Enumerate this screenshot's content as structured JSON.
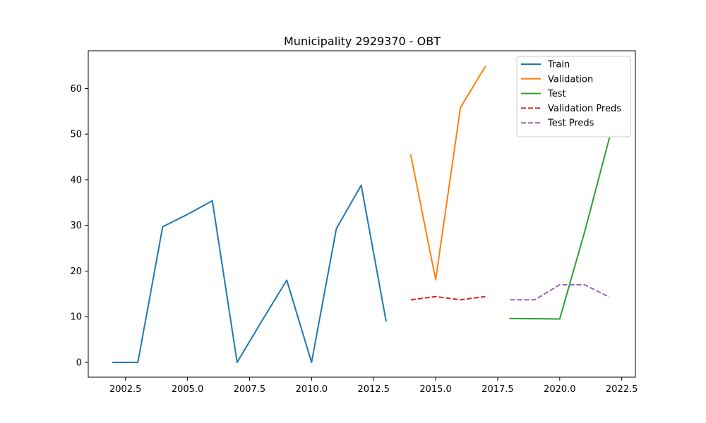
{
  "chart_data": {
    "type": "line",
    "title": "Municipality 2929370 - OBT",
    "xlabel": "",
    "ylabel": "",
    "xlim": [
      2001.0,
      2023.05
    ],
    "ylim": [
      -3.25,
      68.25
    ],
    "xticks": [
      2002.5,
      2005.0,
      2007.5,
      2010.0,
      2012.5,
      2015.0,
      2017.5,
      2020.0,
      2022.5
    ],
    "xtick_labels": [
      "2002.5",
      "2005.0",
      "2007.5",
      "2010.0",
      "2012.5",
      "2015.0",
      "2017.5",
      "2020.0",
      "2022.5"
    ],
    "yticks": [
      0,
      10,
      20,
      30,
      40,
      50,
      60
    ],
    "ytick_labels": [
      "0",
      "10",
      "20",
      "30",
      "40",
      "50",
      "60"
    ],
    "grid": false,
    "legend_position": "top-right",
    "series": [
      {
        "name": "Train",
        "color": "#1f77b4",
        "style": "solid",
        "x": [
          2002,
          2003,
          2004,
          2005,
          2006,
          2007,
          2008,
          2009,
          2010,
          2011,
          2012,
          2013
        ],
        "y": [
          0,
          0,
          29.7,
          32.4,
          35.4,
          0,
          9.1,
          18.0,
          0,
          29.3,
          38.8,
          9.1
        ]
      },
      {
        "name": "Validation",
        "color": "#ff7f0e",
        "style": "solid",
        "x": [
          2014,
          2015,
          2016,
          2017
        ],
        "y": [
          45.4,
          18.1,
          55.8,
          64.8
        ]
      },
      {
        "name": "Test",
        "color": "#2ca02c",
        "style": "solid",
        "x": [
          2018,
          2019,
          2020,
          2021,
          2022
        ],
        "y": [
          9.6,
          9.55,
          9.5,
          28.5,
          49.1
        ]
      },
      {
        "name": "Validation Preds",
        "color": "#d62728",
        "style": "dashed",
        "x": [
          2014,
          2015,
          2016,
          2017
        ],
        "y": [
          13.7,
          14.4,
          13.7,
          14.4
        ]
      },
      {
        "name": "Test Preds",
        "color": "#9467bd",
        "style": "dashed",
        "x": [
          2018,
          2019,
          2020,
          2021,
          2022
        ],
        "y": [
          13.7,
          13.7,
          17.0,
          17.0,
          14.3
        ]
      }
    ]
  }
}
